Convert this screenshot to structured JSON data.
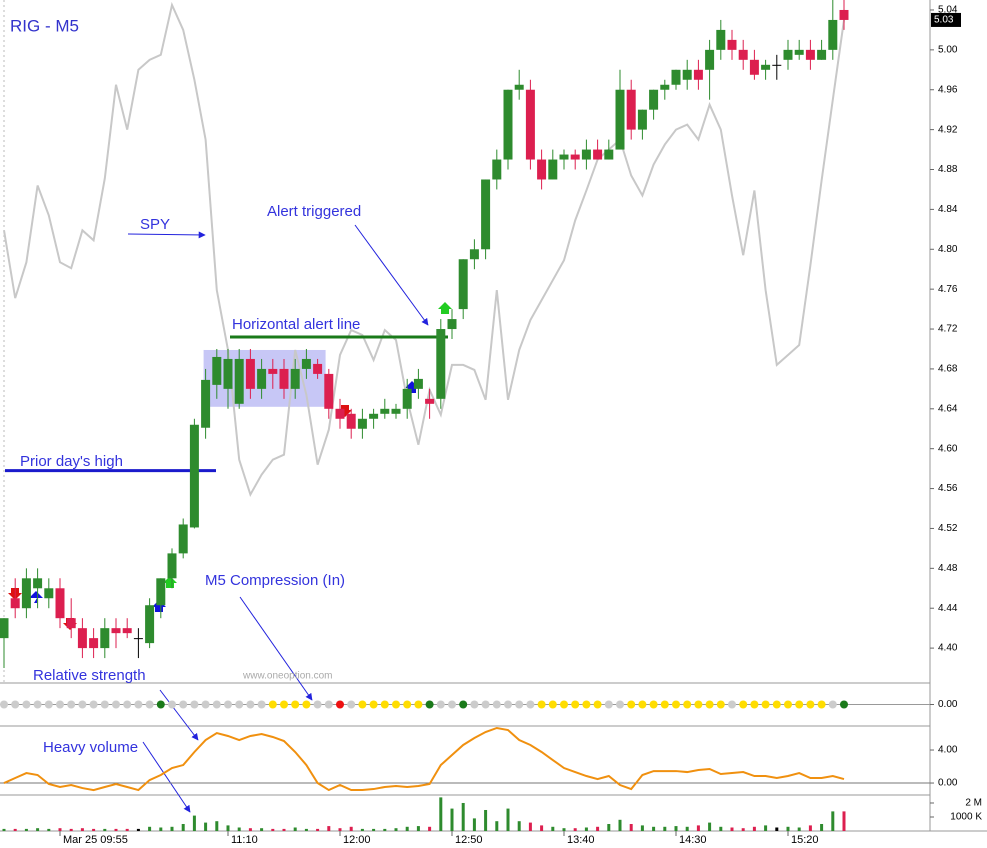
{
  "chart_data": [
    {
      "type": "candlestick",
      "title": "RIG - M5",
      "categories": [
        null,
        null,
        null,
        null,
        null,
        "Mar 25 09:55",
        null,
        null,
        null,
        null,
        null,
        null,
        null,
        null,
        null,
        null,
        null,
        null,
        null,
        null,
        "11:10",
        null,
        null,
        null,
        null,
        null,
        null,
        null,
        null,
        null,
        "12:00",
        null,
        null,
        null,
        null,
        null,
        null,
        null,
        null,
        null,
        "12:50",
        null,
        null,
        null,
        null,
        null,
        null,
        null,
        null,
        null,
        "13:40",
        null,
        null,
        null,
        null,
        null,
        null,
        null,
        null,
        null,
        "14:30",
        null,
        null,
        null,
        null,
        null,
        null,
        null,
        null,
        null,
        "15:20",
        null,
        null,
        null,
        null,
        null
      ],
      "open": [
        4.41,
        4.45,
        4.44,
        4.46,
        4.45,
        4.46,
        4.43,
        4.42,
        4.41,
        4.4,
        4.42,
        4.42,
        4.41,
        4.405,
        4.443,
        4.47,
        4.495,
        4.521,
        4.621,
        4.664,
        4.66,
        4.645,
        4.69,
        4.66,
        4.68,
        4.68,
        4.66,
        4.68,
        4.685,
        4.675,
        4.64,
        4.635,
        4.62,
        4.63,
        4.635,
        4.635,
        4.64,
        4.66,
        4.65,
        4.65,
        4.72,
        4.74,
        4.79,
        4.8,
        4.87,
        4.89,
        4.96,
        4.96,
        4.89,
        4.87,
        4.89,
        4.895,
        4.89,
        4.9,
        4.89,
        4.9,
        4.96,
        4.92,
        4.94,
        4.96,
        4.965,
        4.97,
        4.98,
        4.98,
        5.0,
        5.01,
        5.0,
        4.99,
        4.98,
        4.985,
        4.99,
        4.995,
        5.0,
        4.99,
        5.0,
        5.04
      ],
      "high": [
        4.43,
        4.47,
        4.48,
        4.48,
        4.47,
        4.47,
        4.45,
        4.43,
        4.42,
        4.43,
        4.43,
        4.43,
        4.42,
        4.45,
        4.47,
        4.5,
        4.53,
        4.63,
        4.68,
        4.7,
        4.7,
        4.7,
        4.7,
        4.69,
        4.69,
        4.69,
        4.69,
        4.7,
        4.69,
        4.68,
        4.65,
        4.64,
        4.64,
        4.64,
        4.65,
        4.645,
        4.67,
        4.68,
        4.66,
        4.73,
        4.74,
        4.79,
        4.81,
        4.87,
        4.9,
        4.96,
        4.98,
        4.97,
        4.9,
        4.9,
        4.9,
        4.9,
        4.91,
        4.91,
        4.91,
        4.98,
        4.97,
        4.94,
        4.96,
        4.97,
        4.98,
        4.99,
        4.99,
        5.01,
        5.03,
        5.02,
        5.01,
        5.0,
        4.99,
        4.995,
        5.01,
        5.01,
        5.01,
        5.01,
        5.05,
        5.05
      ],
      "low": [
        4.38,
        4.43,
        4.43,
        4.44,
        4.44,
        4.42,
        4.41,
        4.39,
        4.39,
        4.39,
        4.4,
        4.41,
        4.39,
        4.4,
        4.43,
        4.46,
        4.49,
        4.52,
        4.61,
        4.65,
        4.64,
        4.64,
        4.65,
        4.65,
        4.66,
        4.65,
        4.65,
        4.67,
        4.67,
        4.63,
        4.62,
        4.61,
        4.61,
        4.62,
        4.63,
        4.63,
        4.63,
        4.65,
        4.63,
        4.64,
        4.71,
        4.73,
        4.78,
        4.79,
        4.86,
        4.88,
        4.95,
        4.88,
        4.86,
        4.87,
        4.88,
        4.88,
        4.88,
        4.89,
        4.89,
        4.9,
        4.91,
        4.91,
        4.93,
        4.95,
        4.96,
        4.96,
        4.96,
        4.95,
        4.99,
        4.99,
        4.98,
        4.97,
        4.97,
        4.97,
        4.98,
        4.99,
        4.98,
        4.99,
        4.99,
        5.02
      ],
      "close": [
        4.43,
        4.44,
        4.47,
        4.47,
        4.46,
        4.43,
        4.42,
        4.4,
        4.4,
        4.42,
        4.415,
        4.415,
        4.41,
        4.443,
        4.47,
        4.495,
        4.524,
        4.624,
        4.669,
        4.692,
        4.69,
        4.69,
        4.66,
        4.68,
        4.675,
        4.66,
        4.68,
        4.69,
        4.675,
        4.64,
        4.63,
        4.62,
        4.63,
        4.635,
        4.64,
        4.64,
        4.66,
        4.67,
        4.645,
        4.72,
        4.73,
        4.79,
        4.8,
        4.87,
        4.89,
        4.96,
        4.965,
        4.89,
        4.87,
        4.89,
        4.895,
        4.89,
        4.9,
        4.89,
        4.9,
        4.96,
        4.92,
        4.94,
        4.96,
        4.965,
        4.98,
        4.98,
        4.97,
        5.0,
        5.02,
        5.0,
        4.99,
        4.975,
        4.985,
        4.985,
        5.0,
        5.0,
        4.99,
        5.0,
        5.03,
        5.03
      ],
      "up_color": "#2e8b2e",
      "down_color": "#dc1f4f",
      "flat_color": "#000000",
      "series": [
        {
          "name": "SPY",
          "color": "#c8c8c8",
          "values": [
            4.819,
            4.751,
            4.787,
            4.864,
            4.834,
            4.787,
            4.781,
            4.819,
            4.809,
            4.871,
            4.965,
            4.92,
            4.98,
            4.99,
            4.995,
            5.045,
            5.02,
            4.97,
            4.91,
            4.759,
            4.699,
            4.589,
            4.554,
            4.574,
            4.589,
            4.594,
            4.699,
            4.654,
            4.584,
            4.619,
            4.694,
            4.719,
            4.714,
            4.689,
            4.719,
            4.709,
            4.649,
            4.604,
            4.659,
            4.634,
            4.684,
            4.684,
            4.679,
            4.649,
            4.759,
            4.649,
            4.699,
            4.729,
            4.749,
            4.769,
            4.789,
            4.829,
            4.859,
            4.89,
            4.9,
            4.91,
            4.874,
            4.854,
            4.885,
            4.905,
            4.92,
            4.925,
            4.91,
            4.945,
            4.92,
            4.854,
            4.794,
            4.859,
            4.759,
            4.684,
            4.694,
            4.704,
            4.784,
            4.869,
            4.95,
            5.03
          ]
        }
      ],
      "ylim": [
        4.365,
        5.05
      ],
      "yticks": [
        {
          "value": 4.4,
          "label": "4.40"
        },
        4.44,
        4.48,
        4.52,
        4.56,
        {
          "value": 4.6,
          "label": "4.60"
        },
        4.64,
        4.68,
        4.72,
        4.76,
        {
          "value": 4.8,
          "label": "4.80"
        },
        4.84,
        4.88,
        4.92,
        4.96,
        {
          "value": 5,
          "label": "5.00"
        },
        5.04
      ],
      "last_price": 5.03,
      "alert_line": {
        "label": "Horizontal alert line",
        "value": 4.712,
        "color": "#1a7a1a"
      },
      "prior_high": {
        "label": "Prior day's high",
        "value": 4.578,
        "color": "#1a1acc"
      },
      "range_box": [
        4.642,
        4.699
      ],
      "alert_label": "Alert triggered",
      "watermark": "www.oneoption.com"
    },
    {
      "type": "dots",
      "name": "M5 Compression (In)",
      "colors": [
        "#cccccc",
        "#cccccc",
        "#cccccc",
        "#cccccc",
        "#cccccc",
        "#cccccc",
        "#cccccc",
        "#cccccc",
        "#cccccc",
        "#cccccc",
        "#cccccc",
        "#cccccc",
        "#cccccc",
        "#cccccc",
        "#1a7a1a",
        "#cccccc",
        "#cccccc",
        "#cccccc",
        "#cccccc",
        "#cccccc",
        "#cccccc",
        "#cccccc",
        "#cccccc",
        "#cccccc",
        "#ffdd00",
        "#ffdd00",
        "#ffdd00",
        "#ffdd00",
        "#cccccc",
        "#cccccc",
        "#ee1111",
        "#cccccc",
        "#ffdd00",
        "#ffdd00",
        "#ffdd00",
        "#ffdd00",
        "#ffdd00",
        "#ffdd00",
        "#1a7a1a",
        "#cccccc",
        "#cccccc",
        "#1a7a1a",
        "#cccccc",
        "#cccccc",
        "#cccccc",
        "#cccccc",
        "#cccccc",
        "#cccccc",
        "#ffdd00",
        "#ffdd00",
        "#ffdd00",
        "#ffdd00",
        "#ffdd00",
        "#ffdd00",
        "#cccccc",
        "#cccccc",
        "#ffdd00",
        "#ffdd00",
        "#ffdd00",
        "#ffdd00",
        "#ffdd00",
        "#ffdd00",
        "#ffdd00",
        "#ffdd00",
        "#ffdd00",
        "#cccccc",
        "#ffdd00",
        "#ffdd00",
        "#ffdd00",
        "#ffdd00",
        "#ffdd00",
        "#ffdd00",
        "#ffdd00",
        "#ffdd00",
        "#cccccc",
        "#1a7a1a"
      ],
      "ylim": [
        -1,
        1
      ],
      "yticks": [
        {
          "value": 0,
          "label": "0.00"
        }
      ]
    },
    {
      "type": "line",
      "series": [
        {
          "name": "Relative strength",
          "color": "#f0900f",
          "values": [
            0,
            0.61,
            1.21,
            0.97,
            -0.12,
            -0.48,
            -0.24,
            -0.61,
            -0.85,
            -0.48,
            -0.12,
            -0.48,
            -0.85,
            0.36,
            0.97,
            1.82,
            2.18,
            3.76,
            5.21,
            6.06,
            5.7,
            5.21,
            5.7,
            5.94,
            5.58,
            5.09,
            3.76,
            2.18,
            0,
            -0.85,
            -0.24,
            -0.85,
            -0.85,
            -0.73,
            -0.48,
            -0.36,
            -0.48,
            -0.36,
            -0.12,
            2.18,
            3.39,
            4.61,
            5.45,
            6.18,
            6.67,
            6.42,
            5.21,
            4.61,
            3.76,
            2.79,
            1.82,
            1.33,
            0.85,
            0.48,
            0.85,
            -0.24,
            -0.73,
            0.97,
            1.45,
            1.45,
            1.45,
            1.33,
            1.58,
            1.7,
            1.09,
            1.21,
            1.33,
            0.85,
            0.85,
            0.61,
            0.85,
            1.21,
            0.61,
            0.61,
            0.85,
            0.48
          ]
        }
      ],
      "ylim": [
        -1.45,
        6.91
      ],
      "yticks": [
        {
          "value": 0,
          "label": "0.00"
        },
        {
          "value": 4,
          "label": "4.00"
        }
      ]
    },
    {
      "type": "bar",
      "annotation": "Heavy volume",
      "values": [
        150000,
        150000,
        150000,
        200000,
        150000,
        200000,
        150000,
        200000,
        150000,
        150000,
        150000,
        150000,
        150000,
        300000,
        250000,
        300000,
        500000,
        1100000,
        600000,
        700000,
        400000,
        250000,
        200000,
        200000,
        150000,
        150000,
        250000,
        150000,
        150000,
        350000,
        200000,
        300000,
        150000,
        150000,
        150000,
        200000,
        300000,
        350000,
        300000,
        2400000,
        1600000,
        2000000,
        900000,
        1500000,
        700000,
        1600000,
        700000,
        600000,
        400000,
        300000,
        200000,
        200000,
        250000,
        300000,
        500000,
        800000,
        500000,
        400000,
        300000,
        300000,
        350000,
        300000,
        400000,
        600000,
        300000,
        250000,
        200000,
        300000,
        400000,
        250000,
        300000,
        250000,
        400000,
        500000,
        1400000,
        1400000
      ],
      "ylim": [
        0,
        2570000
      ],
      "yticks": [
        {
          "value": 2000000,
          "label": "2 M"
        },
        {
          "value": 1000000,
          "label": "1000 K"
        }
      ]
    }
  ]
}
